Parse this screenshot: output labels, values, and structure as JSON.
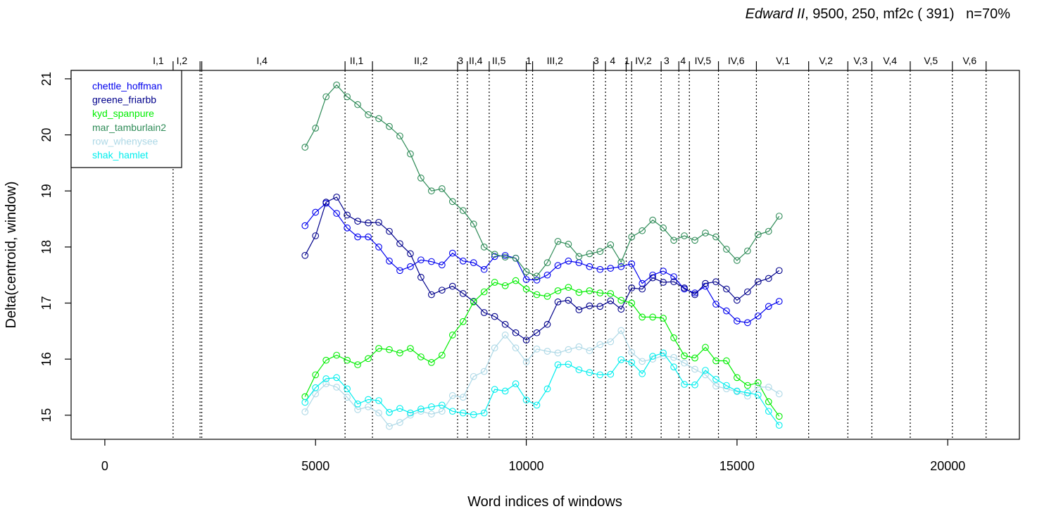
{
  "title": {
    "play": "Edward II",
    "params": ", 9500, 250, mf2c ( 391)   n=70%"
  },
  "chart_data": {
    "type": "line",
    "xlabel": "Word indices of windows",
    "ylabel": "Delta(centroid, window)",
    "xlim": [
      -800,
      21700
    ],
    "ylim": [
      14.57,
      21.15
    ],
    "xticks": [
      0,
      5000,
      10000,
      15000,
      20000
    ],
    "yticks": [
      15,
      16,
      17,
      18,
      19,
      20,
      21
    ],
    "grid": false,
    "legend_position": "top-left",
    "x": [
      4750,
      5000,
      5250,
      5500,
      5750,
      6000,
      6250,
      6500,
      6750,
      7000,
      7250,
      7500,
      7750,
      8000,
      8250,
      8500,
      8750,
      9000,
      9250,
      9500,
      9750,
      10000,
      10250,
      10500,
      10750,
      11000,
      11250,
      11500,
      11750,
      12000,
      12250,
      12500,
      12750,
      13000,
      13250,
      13500,
      13750,
      14000,
      14250,
      14500,
      14750,
      15000,
      15250,
      15500,
      15750,
      16000
    ],
    "series": [
      {
        "name": "chettle_hoffman",
        "color": "#0000ee",
        "values": [
          18.38,
          18.62,
          18.78,
          18.6,
          18.34,
          18.18,
          18.18,
          18.0,
          17.75,
          17.58,
          17.65,
          17.77,
          17.74,
          17.68,
          17.89,
          17.75,
          17.72,
          17.6,
          17.83,
          17.85,
          17.8,
          17.42,
          17.41,
          17.5,
          17.67,
          17.75,
          17.72,
          17.65,
          17.6,
          17.62,
          17.65,
          17.7,
          17.35,
          17.5,
          17.57,
          17.47,
          17.25,
          17.18,
          17.3,
          16.98,
          16.86,
          16.68,
          16.65,
          16.77,
          16.94,
          17.03
        ]
      },
      {
        "name": "greene_friarbb",
        "color": "#00008b",
        "values": [
          17.85,
          18.2,
          18.8,
          18.89,
          18.57,
          18.46,
          18.43,
          18.44,
          18.28,
          18.06,
          17.88,
          17.46,
          17.15,
          17.23,
          17.3,
          17.17,
          17.03,
          16.83,
          16.76,
          16.62,
          16.47,
          16.34,
          16.47,
          16.62,
          17.02,
          17.05,
          16.88,
          16.95,
          16.94,
          17.04,
          16.89,
          17.27,
          17.25,
          17.45,
          17.37,
          17.38,
          17.27,
          17.15,
          17.35,
          17.38,
          17.25,
          17.05,
          17.2,
          17.38,
          17.44,
          17.58
        ]
      },
      {
        "name": "kyd_spanpure",
        "color": "#00ee00",
        "values": [
          15.33,
          15.72,
          15.98,
          16.07,
          15.98,
          15.9,
          16.01,
          16.19,
          16.17,
          16.11,
          16.19,
          16.04,
          15.94,
          16.07,
          16.43,
          16.67,
          17.02,
          17.2,
          17.37,
          17.31,
          17.4,
          17.25,
          17.15,
          17.12,
          17.22,
          17.28,
          17.19,
          17.22,
          17.18,
          17.17,
          17.05,
          17.0,
          16.75,
          16.75,
          16.73,
          16.38,
          16.06,
          16.02,
          16.21,
          15.97,
          15.97,
          15.67,
          15.53,
          15.58,
          15.24,
          14.98
        ]
      },
      {
        "name": "mar_tamburlain2",
        "color": "#2e8b57",
        "values": [
          19.78,
          20.12,
          20.68,
          20.89,
          20.68,
          20.54,
          20.36,
          20.29,
          20.15,
          19.98,
          19.66,
          19.23,
          19.0,
          19.04,
          18.81,
          18.65,
          18.41,
          18.0,
          17.87,
          17.82,
          17.8,
          17.56,
          17.48,
          17.72,
          18.1,
          18.05,
          17.83,
          17.88,
          17.92,
          18.04,
          17.73,
          18.18,
          18.29,
          18.48,
          18.34,
          18.12,
          18.2,
          18.12,
          18.25,
          18.18,
          17.96,
          17.76,
          17.93,
          18.22,
          18.28,
          18.55
        ]
      },
      {
        "name": "row_whenysee",
        "color": "#add8e6",
        "values": [
          15.06,
          15.38,
          15.56,
          15.5,
          15.32,
          15.1,
          15.15,
          15.04,
          14.8,
          14.87,
          15.0,
          15.07,
          15.02,
          15.07,
          15.35,
          15.32,
          15.69,
          15.78,
          16.2,
          16.43,
          16.2,
          15.95,
          16.18,
          16.14,
          16.11,
          16.17,
          16.22,
          16.15,
          16.26,
          16.31,
          16.51,
          16.12,
          15.96,
          16.0,
          16.06,
          16.03,
          15.93,
          15.82,
          15.72,
          15.52,
          15.47,
          15.42,
          15.34,
          15.5,
          15.5,
          15.38
        ]
      },
      {
        "name": "shak_hamlet",
        "color": "#00eeee",
        "values": [
          15.23,
          15.49,
          15.65,
          15.67,
          15.47,
          15.2,
          15.28,
          15.26,
          15.05,
          15.12,
          15.04,
          15.11,
          15.15,
          15.18,
          15.07,
          15.04,
          15.01,
          15.04,
          15.46,
          15.43,
          15.56,
          15.27,
          15.18,
          15.47,
          15.9,
          15.91,
          15.81,
          15.76,
          15.72,
          15.73,
          15.99,
          15.94,
          15.74,
          16.05,
          16.11,
          15.86,
          15.55,
          15.54,
          15.8,
          15.64,
          15.53,
          15.43,
          15.4,
          15.36,
          15.07,
          14.82
        ]
      }
    ],
    "scene_boundaries": [
      1620,
      2260,
      2300,
      5700,
      6350,
      8370,
      8600,
      9120,
      10000,
      10150,
      11600,
      11880,
      12370,
      12500,
      13200,
      13620,
      13870,
      14560,
      15460,
      16700,
      17630,
      18200,
      19110,
      20110,
      20910
    ],
    "scene_labels": [
      {
        "label": "I,1",
        "x": 1270
      },
      {
        "label": "I,2",
        "x": 1830
      },
      {
        "label": "I,4",
        "x": 3730
      },
      {
        "label": "II,1",
        "x": 5975
      },
      {
        "label": "II,2",
        "x": 7500
      },
      {
        "label": "3",
        "x": 8440
      },
      {
        "label": "II,4",
        "x": 8800
      },
      {
        "label": "II,5",
        "x": 9350
      },
      {
        "label": "1",
        "x": 10060
      },
      {
        "label": "III,2",
        "x": 10680
      },
      {
        "label": "3",
        "x": 11660
      },
      {
        "label": "4",
        "x": 12050
      },
      {
        "label": "1",
        "x": 12390
      },
      {
        "label": "IV,2",
        "x": 12780
      },
      {
        "label": "3",
        "x": 13330
      },
      {
        "label": "4",
        "x": 13720
      },
      {
        "label": "IV,5",
        "x": 14190
      },
      {
        "label": "IV,6",
        "x": 14980
      },
      {
        "label": "V,1",
        "x": 16090
      },
      {
        "label": "V,2",
        "x": 17110
      },
      {
        "label": "V,3",
        "x": 17930
      },
      {
        "label": "V,4",
        "x": 18630
      },
      {
        "label": "V,5",
        "x": 19600
      },
      {
        "label": "V,6",
        "x": 20520
      }
    ]
  }
}
